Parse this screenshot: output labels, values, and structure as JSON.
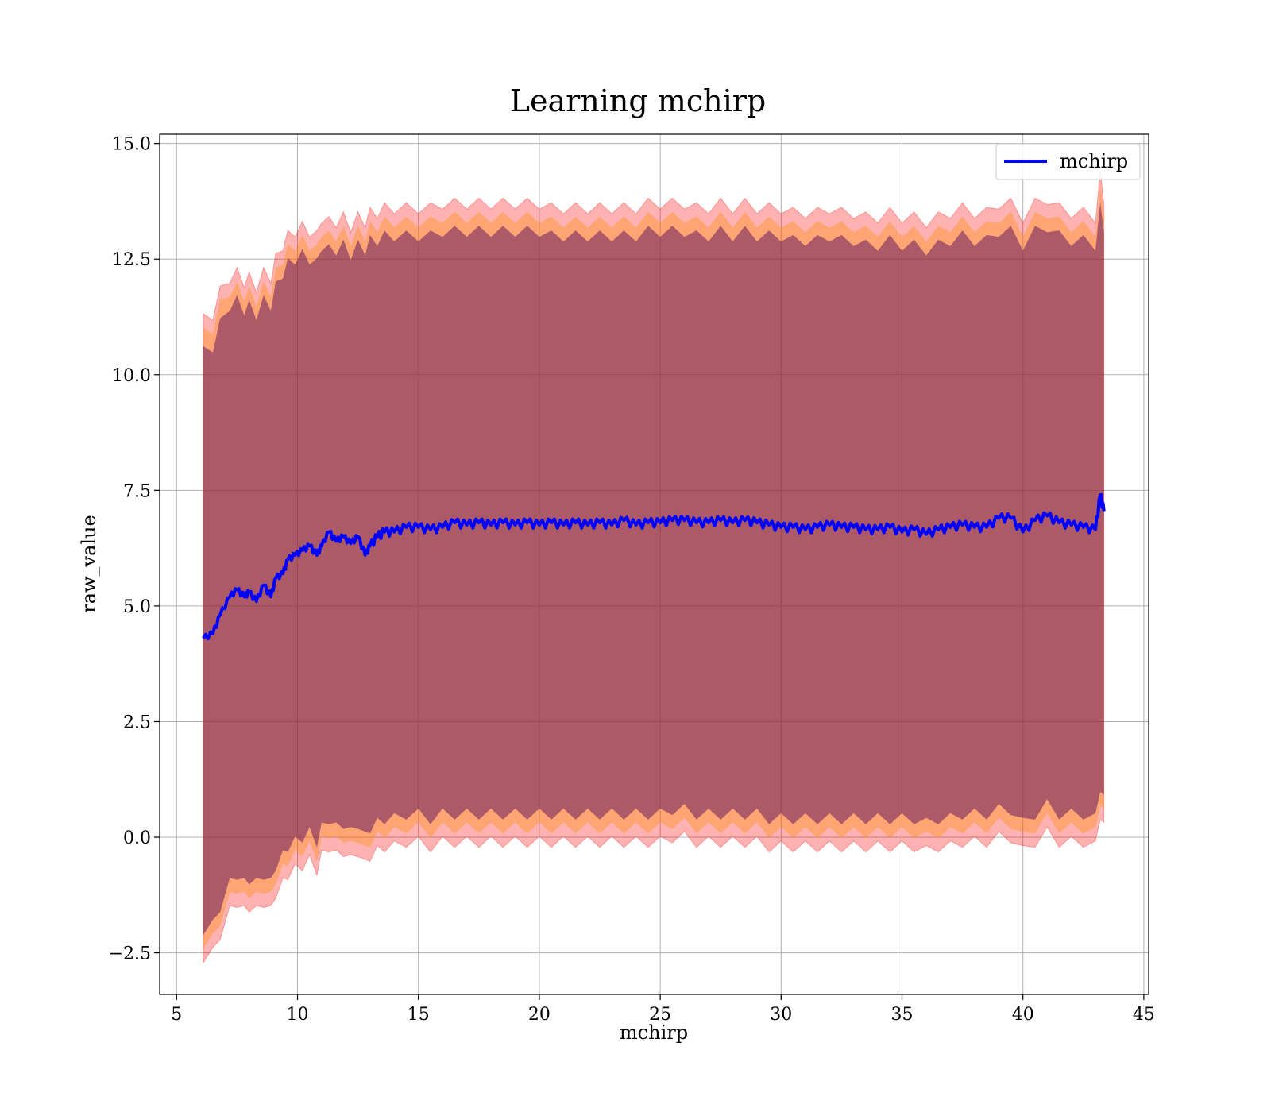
{
  "chart_data": {
    "type": "line",
    "title": "Learning mchirp",
    "xlabel": "mchirp",
    "ylabel": "raw_value",
    "xlim": [
      4.3,
      45.2
    ],
    "ylim": [
      -3.4,
      15.2
    ],
    "xticks": [
      5,
      10,
      15,
      20,
      25,
      30,
      35,
      40,
      45
    ],
    "yticks": [
      -2.5,
      0.0,
      2.5,
      5.0,
      7.5,
      10.0,
      12.5,
      15.0
    ],
    "ytick_labels": [
      "−2.5",
      "0.0",
      "2.5",
      "5.0",
      "7.5",
      "10.0",
      "12.5",
      "15.0"
    ],
    "xtick_labels": [
      "5",
      "10",
      "15",
      "20",
      "25",
      "30",
      "35",
      "40",
      "45"
    ],
    "grid": true,
    "legend": {
      "position": "top-right",
      "entries": [
        "mchirp"
      ]
    },
    "colors": {
      "line": "#0000ff",
      "band_outer": "#ff0000",
      "band_mid": "#ff8c00",
      "band_inner": "#800080"
    },
    "series": [
      {
        "name": "mchirp",
        "x": [
          6.1,
          6.5,
          6.8,
          7.2,
          7.5,
          7.8,
          8.0,
          8.3,
          8.6,
          8.9,
          9.1,
          9.4,
          9.6,
          9.9,
          10.2,
          10.5,
          10.8,
          11.0,
          11.3,
          11.6,
          11.9,
          12.2,
          12.5,
          12.8,
          13.0,
          13.3,
          13.6,
          14.0,
          14.5,
          15.0,
          15.5,
          16.0,
          16.5,
          17.0,
          17.5,
          18.0,
          18.5,
          19.0,
          19.5,
          20.0,
          20.5,
          21.0,
          21.5,
          22.0,
          22.5,
          23.0,
          23.5,
          24.0,
          24.5,
          25.0,
          25.5,
          26.0,
          26.5,
          27.0,
          27.5,
          28.0,
          28.5,
          29.0,
          29.5,
          30.0,
          30.5,
          31.0,
          31.5,
          32.0,
          32.5,
          33.0,
          33.5,
          34.0,
          34.5,
          35.0,
          35.5,
          36.0,
          36.5,
          37.0,
          37.5,
          38.0,
          38.5,
          39.0,
          39.5,
          40.0,
          40.5,
          41.0,
          41.5,
          42.0,
          42.5,
          43.0,
          43.2,
          43.35
        ],
        "y": [
          4.3,
          4.4,
          4.8,
          5.2,
          5.35,
          5.2,
          5.3,
          5.1,
          5.45,
          5.2,
          5.6,
          5.7,
          6.0,
          6.1,
          6.2,
          6.3,
          6.1,
          6.3,
          6.6,
          6.4,
          6.5,
          6.35,
          6.5,
          6.1,
          6.3,
          6.5,
          6.6,
          6.6,
          6.7,
          6.7,
          6.65,
          6.7,
          6.8,
          6.75,
          6.8,
          6.75,
          6.8,
          6.75,
          6.8,
          6.75,
          6.8,
          6.75,
          6.8,
          6.75,
          6.8,
          6.75,
          6.85,
          6.75,
          6.8,
          6.8,
          6.85,
          6.85,
          6.8,
          6.8,
          6.85,
          6.8,
          6.85,
          6.8,
          6.75,
          6.7,
          6.7,
          6.65,
          6.7,
          6.75,
          6.7,
          6.7,
          6.65,
          6.65,
          6.7,
          6.6,
          6.65,
          6.55,
          6.65,
          6.7,
          6.75,
          6.7,
          6.7,
          6.9,
          6.9,
          6.6,
          6.85,
          6.95,
          6.8,
          6.75,
          6.7,
          6.65,
          7.4,
          7.05
        ]
      }
    ],
    "bands": [
      {
        "name": "outer",
        "upper": [
          11.2,
          11.3,
          11.8,
          12.1,
          12.2,
          12.0,
          12.1,
          11.9,
          12.2,
          12.1,
          12.5,
          12.8,
          13.0,
          13.1,
          13.2,
          13.1,
          13.0,
          13.4,
          13.3,
          13.3,
          13.4,
          13.2,
          13.4,
          13.3,
          13.5,
          13.5,
          13.6,
          13.6,
          13.6,
          13.6,
          13.6,
          13.7,
          13.7,
          13.7,
          13.7,
          13.7,
          13.7,
          13.7,
          13.7,
          13.7,
          13.6,
          13.6,
          13.6,
          13.6,
          13.6,
          13.6,
          13.6,
          13.6,
          13.7,
          13.7,
          13.7,
          13.7,
          13.6,
          13.6,
          13.7,
          13.6,
          13.7,
          13.6,
          13.6,
          13.6,
          13.5,
          13.5,
          13.5,
          13.6,
          13.5,
          13.5,
          13.4,
          13.4,
          13.5,
          13.4,
          13.4,
          13.3,
          13.4,
          13.5,
          13.6,
          13.5,
          13.5,
          13.7,
          13.7,
          13.4,
          13.7,
          13.8,
          13.6,
          13.5,
          13.5,
          13.4,
          14.3,
          13.8
        ],
        "lower": [
          -2.6,
          -2.5,
          -2.1,
          -1.6,
          -1.4,
          -1.6,
          -1.5,
          -1.6,
          -1.4,
          -1.6,
          -1.2,
          -1.0,
          -0.8,
          -0.7,
          -0.6,
          -0.5,
          -0.7,
          -0.4,
          -0.2,
          -0.4,
          -0.3,
          -0.5,
          -0.3,
          -0.6,
          -0.4,
          -0.3,
          -0.2,
          -0.2,
          -0.1,
          -0.1,
          -0.2,
          -0.1,
          -0.1,
          -0.1,
          -0.1,
          -0.1,
          -0.1,
          -0.1,
          -0.1,
          -0.1,
          -0.1,
          -0.1,
          -0.1,
          -0.1,
          -0.1,
          -0.1,
          -0.1,
          -0.1,
          -0.1,
          -0.1,
          0.0,
          0.0,
          -0.1,
          -0.1,
          -0.1,
          -0.1,
          -0.1,
          -0.1,
          -0.2,
          -0.2,
          -0.2,
          -0.2,
          -0.2,
          -0.2,
          -0.2,
          -0.2,
          -0.2,
          -0.2,
          -0.2,
          -0.2,
          -0.2,
          -0.3,
          -0.2,
          -0.2,
          -0.1,
          -0.1,
          -0.1,
          0.0,
          0.0,
          -0.3,
          -0.1,
          0.1,
          -0.1,
          -0.1,
          -0.1,
          -0.2,
          0.5,
          0.2
        ]
      },
      {
        "name": "inner",
        "upper": [
          10.5,
          10.6,
          11.1,
          11.5,
          11.6,
          11.4,
          11.5,
          11.3,
          11.6,
          11.5,
          11.9,
          12.2,
          12.4,
          12.5,
          12.6,
          12.5,
          12.4,
          12.8,
          12.7,
          12.7,
          12.8,
          12.6,
          12.8,
          12.7,
          12.9,
          12.9,
          13.0,
          13.0,
          13.0,
          13.0,
          13.0,
          13.1,
          13.1,
          13.1,
          13.1,
          13.1,
          13.1,
          13.1,
          13.1,
          13.1,
          13.0,
          13.0,
          13.0,
          13.0,
          13.0,
          13.0,
          13.0,
          13.0,
          13.1,
          13.1,
          13.1,
          13.1,
          13.0,
          13.0,
          13.1,
          13.0,
          13.1,
          13.0,
          13.0,
          13.0,
          12.9,
          12.9,
          12.9,
          13.0,
          12.9,
          12.9,
          12.8,
          12.8,
          12.9,
          12.8,
          12.8,
          12.7,
          12.8,
          12.9,
          13.0,
          12.9,
          12.9,
          13.1,
          13.1,
          12.8,
          13.1,
          13.2,
          13.0,
          12.9,
          12.9,
          12.8,
          13.6,
          13.2
        ],
        "lower": [
          -2.0,
          -1.9,
          -1.5,
          -1.0,
          -0.8,
          -1.0,
          -0.9,
          -1.0,
          -0.8,
          -1.0,
          -0.6,
          -0.4,
          -0.2,
          -0.1,
          0.0,
          0.1,
          -0.1,
          0.2,
          0.4,
          0.2,
          0.3,
          0.1,
          0.3,
          0.0,
          0.2,
          0.3,
          0.4,
          0.4,
          0.5,
          0.5,
          0.4,
          0.5,
          0.5,
          0.5,
          0.5,
          0.5,
          0.5,
          0.5,
          0.5,
          0.5,
          0.5,
          0.5,
          0.5,
          0.5,
          0.5,
          0.5,
          0.5,
          0.5,
          0.5,
          0.5,
          0.6,
          0.6,
          0.5,
          0.5,
          0.5,
          0.5,
          0.5,
          0.5,
          0.4,
          0.4,
          0.4,
          0.4,
          0.4,
          0.4,
          0.4,
          0.4,
          0.4,
          0.4,
          0.4,
          0.4,
          0.4,
          0.3,
          0.4,
          0.4,
          0.5,
          0.5,
          0.5,
          0.6,
          0.6,
          0.3,
          0.5,
          0.7,
          0.5,
          0.5,
          0.5,
          0.4,
          1.1,
          0.8
        ]
      }
    ]
  }
}
